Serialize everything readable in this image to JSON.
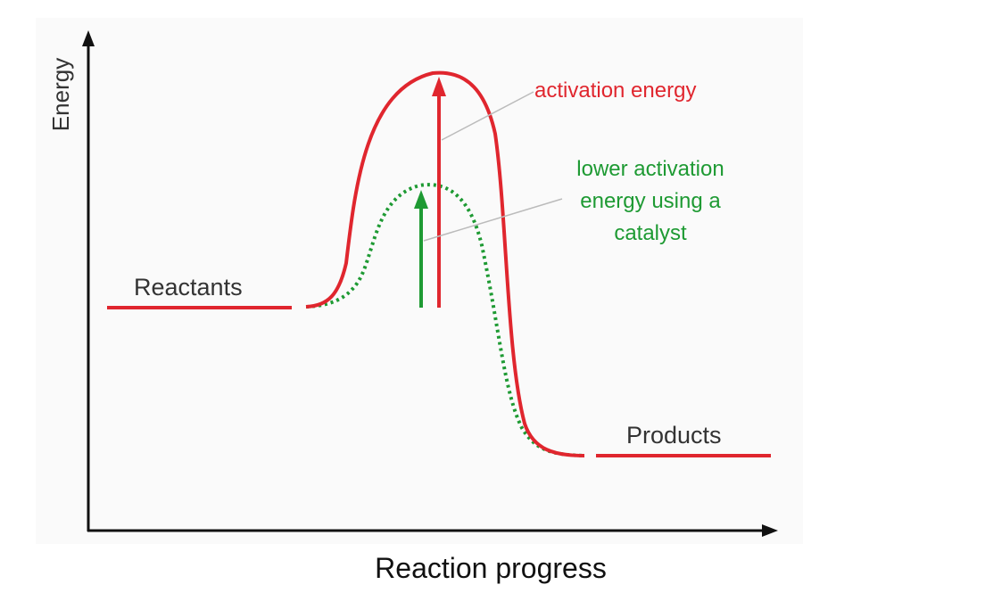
{
  "diagram": {
    "y_axis_label": "Energy",
    "x_axis_label": "Reaction progress",
    "reactants_label": "Reactants",
    "products_label": "Products",
    "activation_label": "activation energy",
    "catalyst_label": {
      "line1": "lower activation",
      "line2": "energy using a",
      "line3": "catalyst"
    }
  },
  "colors": {
    "uncatalyzed": "#e0262e",
    "catalyzed": "#1e9a33",
    "axis": "#111111",
    "label_text": "#333333",
    "leader_line": "#bbbbbb"
  }
}
